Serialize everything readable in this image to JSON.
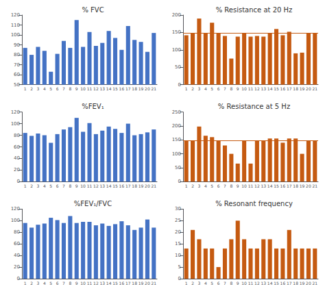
{
  "chart_data": [
    {
      "type": "bar",
      "title": "% FVC",
      "categories": [
        1,
        2,
        3,
        4,
        5,
        6,
        7,
        8,
        9,
        10,
        11,
        12,
        13,
        14,
        15,
        16,
        17,
        18,
        19,
        20,
        21
      ],
      "values": [
        87,
        80,
        88,
        84,
        63,
        81,
        94,
        87,
        115,
        88,
        103,
        89,
        92,
        104,
        97,
        85,
        109,
        95,
        93,
        83,
        102
      ],
      "color": "#4472C4",
      "ylim": [
        50,
        120
      ],
      "yticks": [
        50,
        60,
        70,
        80,
        90,
        100,
        110,
        120
      ],
      "grid": false
    },
    {
      "type": "bar",
      "title": "% Resistance at 20 Hz",
      "categories": [
        1,
        2,
        3,
        4,
        5,
        6,
        7,
        8,
        9,
        10,
        11,
        12,
        13,
        14,
        15,
        16,
        17,
        18,
        19,
        20,
        21
      ],
      "values": [
        142,
        148,
        190,
        148,
        178,
        148,
        140,
        75,
        138,
        148,
        138,
        140,
        138,
        148,
        160,
        142,
        152,
        90,
        92,
        148,
        148
      ],
      "color": "#C55A11",
      "ylim": [
        0,
        200
      ],
      "yticks": [
        0,
        50,
        100,
        150,
        200
      ],
      "grid": false,
      "ref_line": 148
    },
    {
      "type": "bar",
      "title": "%FEV₁",
      "categories": [
        1,
        2,
        3,
        4,
        5,
        6,
        7,
        8,
        9,
        10,
        11,
        12,
        13,
        14,
        15,
        16,
        17,
        18,
        19,
        20,
        21
      ],
      "values": [
        84,
        79,
        83,
        80,
        67,
        82,
        90,
        94,
        110,
        86,
        101,
        82,
        88,
        95,
        91,
        84,
        100,
        80,
        82,
        85,
        90
      ],
      "color": "#4472C4",
      "ylim": [
        0,
        120
      ],
      "yticks": [
        0,
        20,
        40,
        60,
        80,
        100,
        120
      ],
      "grid": false
    },
    {
      "type": "bar",
      "title": "% Resistance at 5 Hz",
      "categories": [
        1,
        2,
        3,
        4,
        5,
        6,
        7,
        8,
        9,
        10,
        11,
        12,
        13,
        14,
        15,
        16,
        17,
        18,
        19,
        20,
        21
      ],
      "values": [
        148,
        148,
        198,
        165,
        160,
        148,
        130,
        100,
        65,
        148,
        65,
        148,
        148,
        155,
        155,
        140,
        155,
        155,
        100,
        148,
        148
      ],
      "color": "#C55A11",
      "ylim": [
        0,
        250
      ],
      "yticks": [
        0,
        50,
        100,
        150,
        200,
        250
      ],
      "grid": false,
      "ref_line": 148
    },
    {
      "type": "bar",
      "title": "%FEV₁/FVC",
      "categories": [
        1,
        2,
        3,
        4,
        5,
        6,
        7,
        8,
        9,
        10,
        11,
        12,
        13,
        14,
        15,
        16,
        17,
        18,
        19,
        20,
        21
      ],
      "values": [
        96,
        88,
        93,
        95,
        105,
        101,
        96,
        108,
        96,
        98,
        98,
        92,
        95,
        91,
        94,
        99,
        92,
        84,
        88,
        102,
        88
      ],
      "color": "#4472C4",
      "ylim": [
        0,
        120
      ],
      "yticks": [
        0,
        20,
        40,
        60,
        80,
        100,
        120
      ],
      "grid": false
    },
    {
      "type": "bar",
      "title": "% Resonant frequency",
      "categories": [
        1,
        2,
        3,
        4,
        5,
        6,
        7,
        8,
        9,
        10,
        11,
        12,
        13,
        14,
        15,
        16,
        17,
        18,
        19,
        20,
        21
      ],
      "values": [
        13,
        21,
        17,
        13,
        13,
        5,
        13,
        17,
        25,
        17,
        13,
        13,
        17,
        17,
        13,
        13,
        21,
        13,
        13,
        13,
        13
      ],
      "color": "#C55A11",
      "ylim": [
        0,
        30
      ],
      "yticks": [
        0,
        5,
        10,
        15,
        20,
        25,
        30
      ],
      "grid": false
    }
  ]
}
